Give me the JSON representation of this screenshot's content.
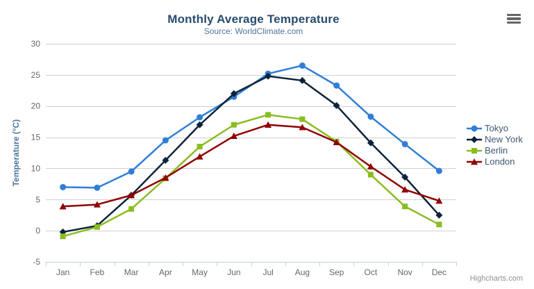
{
  "chart_data": {
    "type": "line",
    "title": "Monthly Average Temperature",
    "subtitle": "Source: WorldClimate.com",
    "xlabel": "",
    "ylabel": "Temperature (°C)",
    "categories": [
      "Jan",
      "Feb",
      "Mar",
      "Apr",
      "May",
      "Jun",
      "Jul",
      "Aug",
      "Sep",
      "Oct",
      "Nov",
      "Dec"
    ],
    "ylim": [
      -5,
      30
    ],
    "yticks": [
      -5,
      0,
      5,
      10,
      15,
      20,
      25,
      30
    ],
    "grid": true,
    "legend_position": "right",
    "series": [
      {
        "name": "Tokyo",
        "marker": "circle",
        "color": "#2f7ed8",
        "values": [
          7.0,
          6.9,
          9.5,
          14.5,
          18.2,
          21.5,
          25.2,
          26.5,
          23.3,
          18.3,
          13.9,
          9.6
        ]
      },
      {
        "name": "New York",
        "marker": "diamond",
        "color": "#0d233a",
        "values": [
          -0.2,
          0.8,
          5.7,
          11.3,
          17.0,
          22.0,
          24.8,
          24.1,
          20.1,
          14.1,
          8.6,
          2.5
        ]
      },
      {
        "name": "Berlin",
        "marker": "square",
        "color": "#8bbc21",
        "values": [
          -0.9,
          0.6,
          3.5,
          8.4,
          13.5,
          17.0,
          18.6,
          17.9,
          14.3,
          9.0,
          3.9,
          1.0
        ]
      },
      {
        "name": "London",
        "marker": "triangle",
        "color": "#910000",
        "values": [
          3.9,
          4.2,
          5.7,
          8.5,
          11.9,
          15.2,
          17.0,
          16.6,
          14.2,
          10.3,
          6.6,
          4.8
        ]
      }
    ]
  },
  "credits": "Highcharts.com",
  "colors": {
    "title": "#274b6d",
    "subtitle": "#4d759e",
    "axis_title": "#4d759e",
    "tick_label": "#666666",
    "grid": "#d0d0d0",
    "axis_line": "#c0d0e0",
    "legend_text": "#3e576f",
    "credits": "#909090",
    "menu_icon": "#666666"
  }
}
